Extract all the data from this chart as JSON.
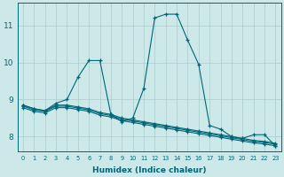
{
  "xlabel": "Humidex (Indice chaleur)",
  "bg_color": "#cce8e8",
  "grid_color": "#aacccc",
  "line_color": "#006677",
  "xlim": [
    -0.5,
    23.5
  ],
  "ylim": [
    7.6,
    11.6
  ],
  "yticks": [
    8,
    9,
    10,
    11
  ],
  "xticks": [
    0,
    1,
    2,
    3,
    4,
    5,
    6,
    7,
    8,
    9,
    10,
    11,
    12,
    13,
    14,
    15,
    16,
    17,
    18,
    19,
    20,
    21,
    22,
    23
  ],
  "series": [
    [
      8.85,
      8.75,
      8.7,
      8.9,
      9.0,
      9.6,
      10.05,
      10.05,
      8.6,
      8.4,
      8.5,
      9.3,
      11.2,
      11.3,
      11.3,
      10.6,
      9.95,
      8.3,
      8.2,
      8.0,
      7.95,
      8.05,
      8.05,
      7.75
    ],
    [
      8.85,
      8.75,
      8.7,
      8.85,
      8.85,
      8.8,
      8.75,
      8.65,
      8.6,
      8.5,
      8.45,
      8.4,
      8.35,
      8.3,
      8.25,
      8.2,
      8.15,
      8.1,
      8.05,
      8.0,
      7.95,
      7.9,
      7.87,
      7.82
    ],
    [
      8.82,
      8.72,
      8.68,
      8.82,
      8.82,
      8.77,
      8.72,
      8.62,
      8.57,
      8.47,
      8.42,
      8.37,
      8.32,
      8.27,
      8.22,
      8.17,
      8.12,
      8.07,
      8.02,
      7.97,
      7.92,
      7.87,
      7.84,
      7.79
    ],
    [
      8.78,
      8.68,
      8.64,
      8.78,
      8.78,
      8.73,
      8.68,
      8.58,
      8.53,
      8.43,
      8.38,
      8.33,
      8.28,
      8.23,
      8.18,
      8.13,
      8.08,
      8.03,
      7.98,
      7.93,
      7.88,
      7.83,
      7.8,
      7.75
    ]
  ]
}
